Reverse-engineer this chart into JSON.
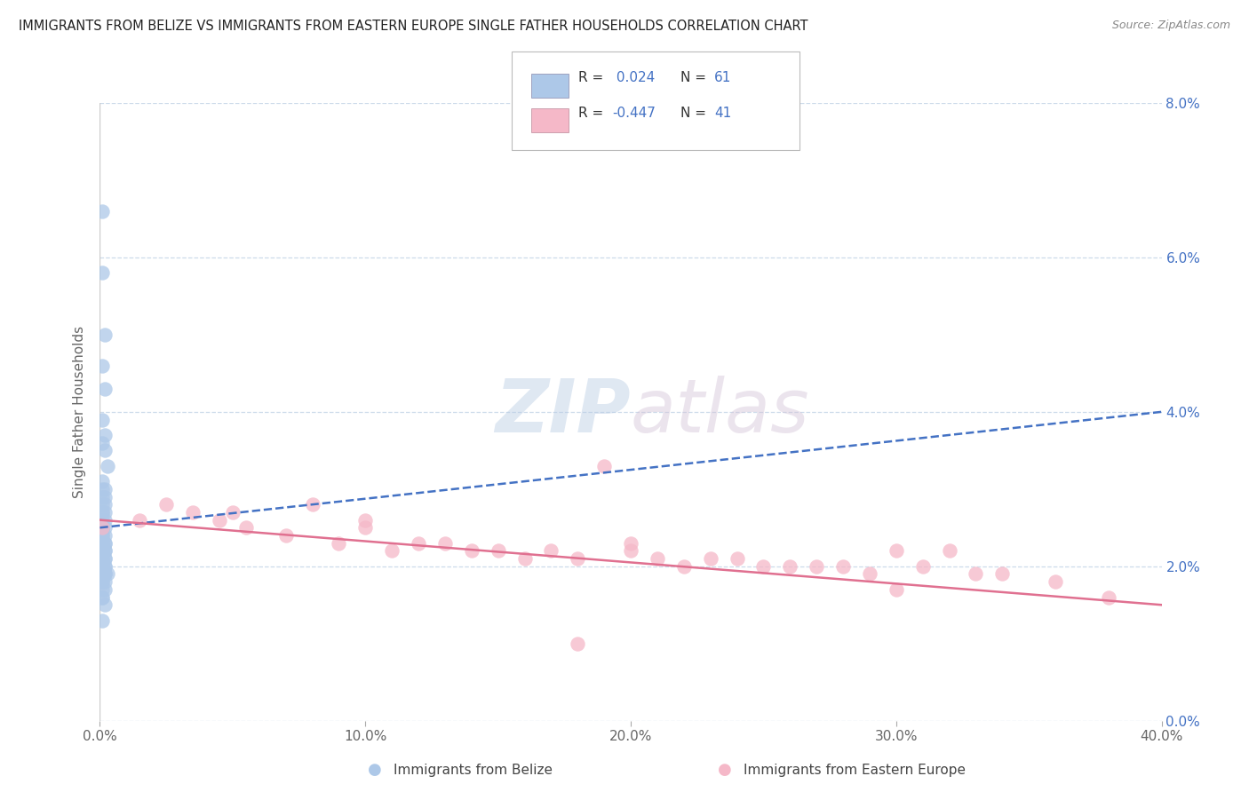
{
  "title": "IMMIGRANTS FROM BELIZE VS IMMIGRANTS FROM EASTERN EUROPE SINGLE FATHER HOUSEHOLDS CORRELATION CHART",
  "source": "Source: ZipAtlas.com",
  "ylabel": "Single Father Households",
  "xlabel_belize": "Immigrants from Belize",
  "xlabel_eastern": "Immigrants from Eastern Europe",
  "watermark_zip": "ZIP",
  "watermark_atlas": "atlas",
  "legend_blue_R": "0.024",
  "legend_blue_N": "61",
  "legend_pink_R": "-0.447",
  "legend_pink_N": "41",
  "xlim": [
    0.0,
    0.4
  ],
  "ylim": [
    0.0,
    0.08
  ],
  "yticks": [
    0.0,
    0.02,
    0.04,
    0.06,
    0.08
  ],
  "xticks": [
    0.0,
    0.1,
    0.2,
    0.3,
    0.4
  ],
  "blue_scatter_color": "#adc8e8",
  "pink_scatter_color": "#f5b8c8",
  "blue_line_color": "#4472c4",
  "pink_line_color": "#e07090",
  "background_color": "#ffffff",
  "grid_color": "#c8d8e8",
  "blue_trend_x0": 0.0,
  "blue_trend_y0": 0.025,
  "blue_trend_x1": 0.4,
  "blue_trend_y1": 0.04,
  "pink_trend_x0": 0.0,
  "pink_trend_y0": 0.026,
  "pink_trend_x1": 0.4,
  "pink_trend_y1": 0.015,
  "blue_x": [
    0.001,
    0.001,
    0.002,
    0.001,
    0.002,
    0.001,
    0.002,
    0.001,
    0.002,
    0.003,
    0.001,
    0.002,
    0.001,
    0.001,
    0.002,
    0.001,
    0.002,
    0.001,
    0.002,
    0.001,
    0.001,
    0.002,
    0.001,
    0.002,
    0.001,
    0.001,
    0.002,
    0.001,
    0.001,
    0.002,
    0.001,
    0.002,
    0.001,
    0.002,
    0.001,
    0.001,
    0.002,
    0.001,
    0.001,
    0.002,
    0.001,
    0.001,
    0.002,
    0.001,
    0.002,
    0.001,
    0.001,
    0.002,
    0.001,
    0.002,
    0.002,
    0.003,
    0.001,
    0.002,
    0.001,
    0.001,
    0.002,
    0.001,
    0.001,
    0.002,
    0.001
  ],
  "blue_y": [
    0.066,
    0.058,
    0.05,
    0.046,
    0.043,
    0.039,
    0.037,
    0.036,
    0.035,
    0.033,
    0.031,
    0.03,
    0.03,
    0.029,
    0.029,
    0.028,
    0.028,
    0.027,
    0.027,
    0.027,
    0.026,
    0.026,
    0.025,
    0.025,
    0.025,
    0.025,
    0.024,
    0.024,
    0.024,
    0.023,
    0.023,
    0.023,
    0.023,
    0.022,
    0.022,
    0.022,
    0.022,
    0.022,
    0.022,
    0.021,
    0.021,
    0.021,
    0.021,
    0.02,
    0.02,
    0.02,
    0.02,
    0.02,
    0.019,
    0.019,
    0.019,
    0.019,
    0.018,
    0.018,
    0.018,
    0.017,
    0.017,
    0.016,
    0.016,
    0.015,
    0.013
  ],
  "pink_x": [
    0.001,
    0.015,
    0.025,
    0.035,
    0.045,
    0.055,
    0.07,
    0.08,
    0.09,
    0.1,
    0.11,
    0.12,
    0.13,
    0.14,
    0.15,
    0.16,
    0.17,
    0.18,
    0.19,
    0.2,
    0.21,
    0.22,
    0.23,
    0.24,
    0.25,
    0.26,
    0.27,
    0.28,
    0.29,
    0.3,
    0.31,
    0.32,
    0.33,
    0.34,
    0.36,
    0.38,
    0.05,
    0.1,
    0.2,
    0.3,
    0.18
  ],
  "pink_y": [
    0.025,
    0.026,
    0.028,
    0.027,
    0.026,
    0.025,
    0.024,
    0.028,
    0.023,
    0.025,
    0.022,
    0.023,
    0.023,
    0.022,
    0.022,
    0.021,
    0.022,
    0.021,
    0.033,
    0.022,
    0.021,
    0.02,
    0.021,
    0.021,
    0.02,
    0.02,
    0.02,
    0.02,
    0.019,
    0.022,
    0.02,
    0.022,
    0.019,
    0.019,
    0.018,
    0.016,
    0.027,
    0.026,
    0.023,
    0.017,
    0.01
  ]
}
